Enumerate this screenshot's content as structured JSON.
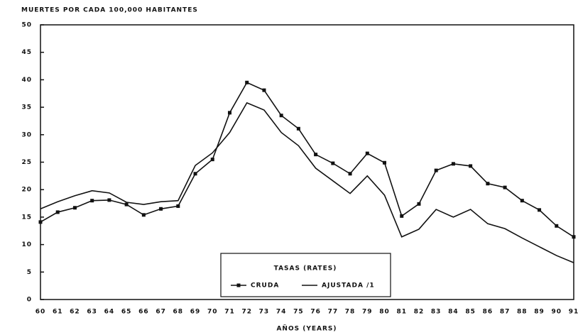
{
  "chart_data": {
    "type": "line",
    "title": "MUERTES POR CADA 100,000 HABITANTES",
    "xlabel": "AÑOS (YEARS)",
    "legend_title": "TASAS (RATES)",
    "categories": [
      "60",
      "61",
      "62",
      "63",
      "64",
      "65",
      "66",
      "67",
      "68",
      "69",
      "70",
      "71",
      "72",
      "73",
      "74",
      "75",
      "76",
      "77",
      "78",
      "79",
      "80",
      "81",
      "82",
      "83",
      "84",
      "85",
      "86",
      "87",
      "88",
      "89",
      "90",
      "91"
    ],
    "series": [
      {
        "name": "CRUDA",
        "color": "#111111",
        "markers": true,
        "values": [
          14.1,
          15.9,
          16.7,
          18.0,
          18.1,
          17.3,
          15.4,
          16.5,
          17.0,
          22.9,
          25.5,
          34.0,
          39.5,
          38.1,
          33.5,
          31.1,
          26.4,
          24.8,
          22.9,
          26.6,
          24.9,
          15.2,
          17.4,
          23.5,
          24.7,
          24.3,
          21.1,
          20.4,
          18.0,
          16.3,
          13.4,
          11.4
        ]
      },
      {
        "name": "AJUSTADA /1",
        "color": "#111111",
        "markers": false,
        "values": [
          16.5,
          17.8,
          18.9,
          19.8,
          19.4,
          17.7,
          17.3,
          17.8,
          18.0,
          24.4,
          26.7,
          30.4,
          35.8,
          34.5,
          30.4,
          28.0,
          23.9,
          21.6,
          19.3,
          22.5,
          19.0,
          11.4,
          12.8,
          16.4,
          15.0,
          16.4,
          13.8,
          12.9,
          11.2,
          9.6,
          8.0,
          6.7
        ]
      }
    ],
    "ylim": [
      0,
      50
    ],
    "yticks": [
      0,
      5,
      10,
      15,
      20,
      25,
      30,
      35,
      40,
      45,
      50
    ]
  }
}
